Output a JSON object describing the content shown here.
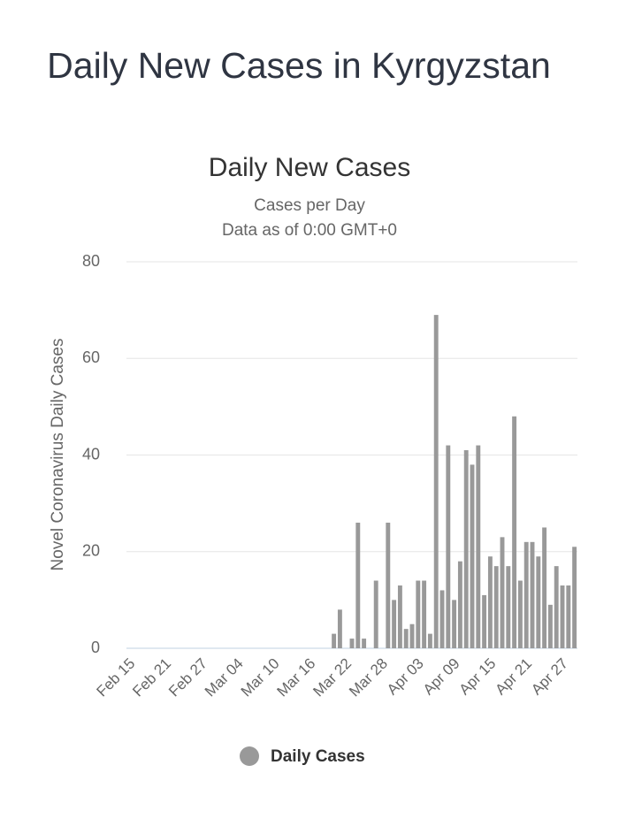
{
  "page_title": "Daily New Cases in Kyrgyzstan",
  "chart_data": {
    "type": "bar",
    "title": "Daily New Cases",
    "subtitle": "Cases per Day",
    "subtitle2": "Data as of 0:00 GMT+0",
    "y_label": "Novel Coronavirus Daily Cases",
    "categories": [
      "Feb 15",
      null,
      null,
      null,
      null,
      null,
      "Feb 21",
      null,
      null,
      null,
      null,
      null,
      "Feb 27",
      null,
      null,
      null,
      null,
      null,
      "Mar 04",
      null,
      null,
      null,
      null,
      null,
      "Mar 10",
      null,
      null,
      null,
      null,
      null,
      "Mar 16",
      null,
      null,
      null,
      null,
      null,
      "Mar 22",
      null,
      null,
      null,
      null,
      null,
      "Mar 28",
      null,
      null,
      null,
      null,
      null,
      "Apr 03",
      null,
      null,
      null,
      null,
      null,
      "Apr 09",
      null,
      null,
      null,
      null,
      null,
      "Apr 15",
      null,
      null,
      null,
      null,
      null,
      "Apr 21",
      null,
      null,
      null,
      null,
      null,
      "Apr 27",
      null,
      null
    ],
    "series": [
      {
        "name": "Daily Cases",
        "color": "#999999",
        "values": [
          0,
          0,
          0,
          0,
          0,
          0,
          0,
          0,
          0,
          0,
          0,
          0,
          0,
          0,
          0,
          0,
          0,
          0,
          0,
          0,
          0,
          0,
          0,
          0,
          0,
          0,
          0,
          0,
          0,
          0,
          0,
          0,
          0,
          0,
          3,
          8,
          0,
          2,
          26,
          2,
          0,
          14,
          0,
          26,
          10,
          13,
          4,
          5,
          14,
          14,
          3,
          69,
          12,
          42,
          10,
          18,
          41,
          38,
          42,
          11,
          19,
          17,
          23,
          17,
          48,
          14,
          22,
          22,
          19,
          25,
          9,
          17,
          13,
          13,
          21
        ]
      }
    ],
    "ylim": [
      0,
      80
    ],
    "yticks": [
      0,
      20,
      40,
      60,
      80
    ],
    "grid": true
  }
}
